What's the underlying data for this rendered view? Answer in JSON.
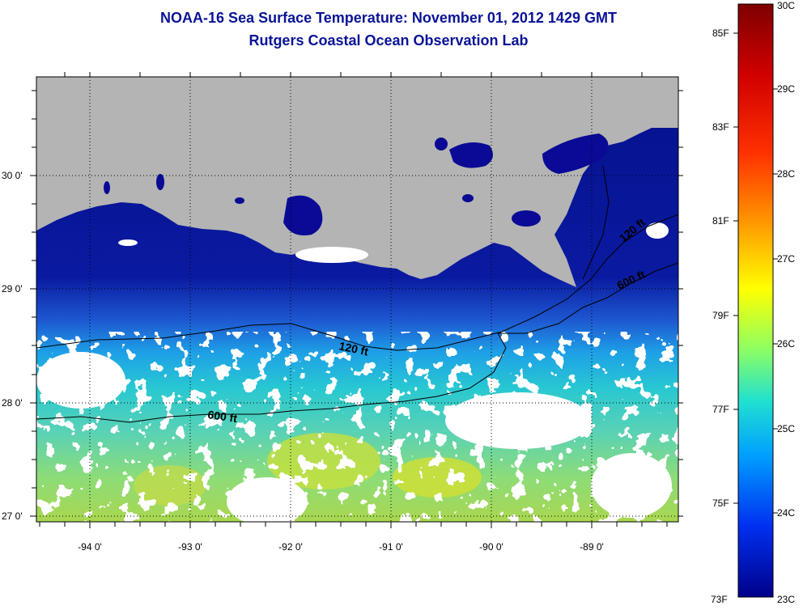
{
  "header": {
    "title": "NOAA-16 Sea Surface Temperature:  November 01, 2012 1429 GMT",
    "subtitle": "Rutgers Coastal Ocean Observation Lab"
  },
  "axes": {
    "lon_labels": [
      "-94 0'",
      "-93 0'",
      "-92 0'",
      "-91 0'",
      "-90 0'",
      "-89 0'"
    ],
    "lat_labels": [
      "30 0'",
      "29 0'",
      "28 0'",
      "27 0'"
    ]
  },
  "contours": {
    "labels": [
      "120 ft",
      "600 ft",
      "120 ft",
      "600 ft"
    ]
  },
  "colorbar": {
    "fahrenheit_labels": [
      "85F",
      "83F",
      "81F",
      "79F",
      "77F",
      "75F",
      "73F"
    ],
    "celsius_labels": [
      "30C",
      "29C",
      "28C",
      "27C",
      "26C",
      "25C",
      "24C",
      "23C"
    ]
  },
  "colors": {
    "land": "#b4b4b4",
    "cloud": "#ffffff",
    "cold_water": "#0a0a96",
    "title": "#0a1496"
  }
}
